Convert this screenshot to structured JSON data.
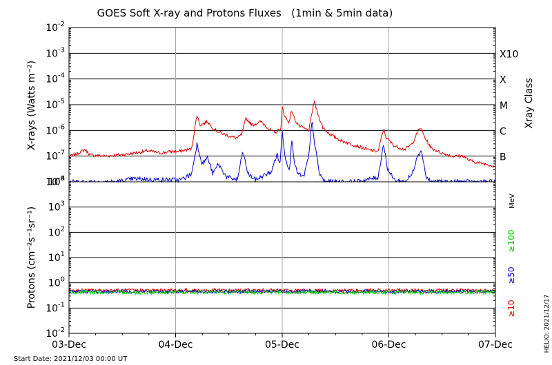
{
  "chart_data": [
    {
      "type": "line",
      "title": "GOES Soft X-ray and Protons Fluxes   (1min & 5min data)",
      "ylabel": "X-rays (Watts m⁻²)",
      "y2label": "Xray Class",
      "yscale": "log",
      "ylim": [
        1e-08,
        0.01
      ],
      "ytick_exponents": [
        -8,
        -7,
        -6,
        -5,
        -4,
        -3,
        -2
      ],
      "class_labels": [
        {
          "label": "B",
          "value": 1e-07
        },
        {
          "label": "C",
          "value": 1e-06
        },
        {
          "label": "M",
          "value": 1e-05
        },
        {
          "label": "X",
          "value": 0.0001
        },
        {
          "label": "X10",
          "value": 0.001
        }
      ],
      "grid": true,
      "series": [
        {
          "color": "#dd0000",
          "points": [
            [
              0.0,
              1e-07
            ],
            [
              0.05,
              1.1e-07
            ],
            [
              0.15,
              1.8e-07
            ],
            [
              0.2,
              1.1e-07
            ],
            [
              0.35,
              1e-07
            ],
            [
              0.55,
              1.2e-07
            ],
            [
              0.75,
              1.6e-07
            ],
            [
              0.85,
              1.3e-07
            ],
            [
              0.95,
              1.5e-07
            ],
            [
              1.02,
              1.5e-07
            ],
            [
              1.15,
              1.9e-07
            ],
            [
              1.2,
              4e-06
            ],
            [
              1.23,
              1.6e-06
            ],
            [
              1.3,
              2.2e-06
            ],
            [
              1.36,
              1.1e-06
            ],
            [
              1.42,
              8e-07
            ],
            [
              1.5,
              6e-07
            ],
            [
              1.58,
              5e-07
            ],
            [
              1.62,
              7e-07
            ],
            [
              1.66,
              3e-06
            ],
            [
              1.72,
              1.6e-06
            ],
            [
              1.8,
              2.2e-06
            ],
            [
              1.87,
              1.2e-06
            ],
            [
              1.93,
              8e-07
            ],
            [
              1.99,
              1.2e-06
            ],
            [
              2.0,
              8e-06
            ],
            [
              2.02,
              4e-06
            ],
            [
              2.06,
              2e-06
            ],
            [
              2.09,
              6e-06
            ],
            [
              2.12,
              2.5e-06
            ],
            [
              2.16,
              1.5e-06
            ],
            [
              2.2,
              1.2e-06
            ],
            [
              2.25,
              1e-06
            ],
            [
              2.3,
              1.4e-05
            ],
            [
              2.33,
              5e-06
            ],
            [
              2.38,
              1.3e-06
            ],
            [
              2.45,
              7e-07
            ],
            [
              2.55,
              4e-07
            ],
            [
              2.7,
              2.5e-07
            ],
            [
              2.8,
              1.8e-07
            ],
            [
              2.9,
              1.5e-07
            ],
            [
              2.95,
              1.1e-06
            ],
            [
              2.98,
              5e-07
            ],
            [
              3.05,
              2.5e-07
            ],
            [
              3.15,
              1.8e-07
            ],
            [
              3.22,
              3e-07
            ],
            [
              3.27,
              9e-07
            ],
            [
              3.3,
              1.3e-06
            ],
            [
              3.34,
              5e-07
            ],
            [
              3.4,
              2e-07
            ],
            [
              3.5,
              1.3e-07
            ],
            [
              3.6,
              1e-07
            ],
            [
              3.7,
              1e-07
            ],
            [
              3.75,
              7e-08
            ],
            [
              3.8,
              6e-08
            ],
            [
              3.9,
              5e-08
            ],
            [
              4.0,
              4e-08
            ]
          ]
        },
        {
          "color": "#0000cc",
          "points": [
            [
              0.0,
              1e-08
            ],
            [
              0.12,
              1e-08
            ],
            [
              0.45,
              1e-08
            ],
            [
              0.6,
              1.3e-08
            ],
            [
              0.85,
              1.2e-08
            ],
            [
              1.05,
              1.2e-08
            ],
            [
              1.15,
              2e-08
            ],
            [
              1.2,
              3e-07
            ],
            [
              1.25,
              5e-08
            ],
            [
              1.3,
              9e-08
            ],
            [
              1.35,
              2e-08
            ],
            [
              1.4,
              5e-08
            ],
            [
              1.48,
              1.5e-08
            ],
            [
              1.58,
              1.2e-08
            ],
            [
              1.63,
              1.5e-07
            ],
            [
              1.68,
              2e-08
            ],
            [
              1.75,
              1.2e-08
            ],
            [
              1.9,
              2.5e-08
            ],
            [
              1.95,
              1.2e-07
            ],
            [
              1.98,
              5e-08
            ],
            [
              2.0,
              1e-06
            ],
            [
              2.03,
              8e-08
            ],
            [
              2.07,
              3e-08
            ],
            [
              2.09,
              5e-07
            ],
            [
              2.12,
              4e-08
            ],
            [
              2.15,
              2e-08
            ],
            [
              2.2,
              1.5e-08
            ],
            [
              2.25,
              1e-07
            ],
            [
              2.28,
              2.5e-06
            ],
            [
              2.3,
              4e-07
            ],
            [
              2.35,
              2e-08
            ],
            [
              2.4,
              1e-08
            ],
            [
              2.7,
              1e-08
            ],
            [
              2.9,
              1.5e-08
            ],
            [
              2.95,
              3e-07
            ],
            [
              2.99,
              3e-08
            ],
            [
              3.05,
              1.2e-08
            ],
            [
              3.15,
              1e-08
            ],
            [
              3.22,
              2e-08
            ],
            [
              3.27,
              1.2e-07
            ],
            [
              3.31,
              1.5e-07
            ],
            [
              3.35,
              1.5e-08
            ],
            [
              3.4,
              1e-08
            ],
            [
              4.0,
              1e-08
            ]
          ]
        }
      ]
    },
    {
      "type": "line",
      "ylabel": "Protons (cm⁻²s⁻¹sr⁻¹)",
      "yscale": "log",
      "ylim": [
        0.01,
        10000
      ],
      "ytick_exponents": [
        -2,
        -1,
        0,
        1,
        2,
        3,
        4
      ],
      "threshold": 10,
      "grid": true,
      "unit_label": "MeV",
      "series": [
        {
          "name": "≥10",
          "color": "#dd0000",
          "level": 0.5
        },
        {
          "name": "≥50",
          "color": "#0000cc",
          "level": 0.45
        },
        {
          "name": "≥100",
          "color": "#00cc00",
          "level": 0.42
        }
      ]
    }
  ],
  "x_axis": {
    "categories": [
      "03-Dec",
      "04-Dec",
      "05-Dec",
      "06-Dec",
      "07-Dec"
    ]
  },
  "footer": {
    "start_date": "Start Date: 2021/12/03 00:00 UT",
    "stamp": "HELIO: 2021/12/17"
  }
}
